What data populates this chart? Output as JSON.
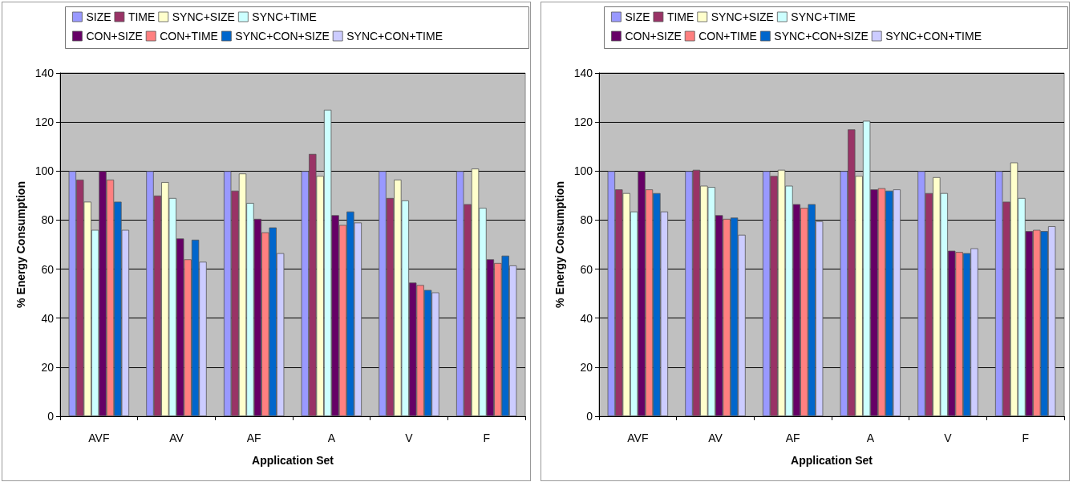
{
  "chart_data": [
    {
      "type": "bar",
      "xlabel": "Application Set",
      "ylabel": "% Energy Consumption",
      "categories": [
        "AVF",
        "AV",
        "AF",
        "A",
        "V",
        "F"
      ],
      "ylim": [
        0,
        140
      ],
      "yticks": [
        0,
        20,
        40,
        60,
        80,
        100,
        120,
        140
      ],
      "grid": "y",
      "legend": "top",
      "series": [
        {
          "name": "SIZE",
          "color": "#9999ff",
          "values": [
            100,
            100,
            100,
            100,
            100,
            100
          ]
        },
        {
          "name": "TIME",
          "color": "#993366",
          "values": [
            96.5,
            90,
            92,
            107,
            89,
            86.5
          ]
        },
        {
          "name": "SYNC+SIZE",
          "color": "#ffffcc",
          "values": [
            87.5,
            95.5,
            99,
            98,
            96.5,
            101
          ]
        },
        {
          "name": "SYNC+TIME",
          "color": "#ccffff",
          "values": [
            76,
            89,
            87,
            125,
            88,
            85
          ]
        },
        {
          "name": "CON+SIZE",
          "color": "#660066",
          "values": [
            100,
            72.5,
            80.5,
            82,
            54.5,
            64
          ]
        },
        {
          "name": "CON+TIME",
          "color": "#ff8080",
          "values": [
            96.5,
            64,
            75,
            78,
            53.5,
            62.5
          ]
        },
        {
          "name": "SYNC+CON+SIZE",
          "color": "#0066cc",
          "values": [
            87.5,
            72,
            77,
            83.5,
            51.5,
            65.5
          ]
        },
        {
          "name": "SYNC+CON+TIME",
          "color": "#ccccff",
          "values": [
            76,
            63,
            66.5,
            79,
            50.5,
            61.5
          ]
        }
      ]
    },
    {
      "type": "bar",
      "xlabel": "Application Set",
      "ylabel": "% Energy Consumption",
      "categories": [
        "AVF",
        "AV",
        "AF",
        "A",
        "V",
        "F"
      ],
      "ylim": [
        0,
        140
      ],
      "yticks": [
        0,
        20,
        40,
        60,
        80,
        100,
        120,
        140
      ],
      "grid": "y",
      "legend": "top",
      "series": [
        {
          "name": "SIZE",
          "color": "#9999ff",
          "values": [
            100,
            100,
            100,
            100,
            100,
            100
          ]
        },
        {
          "name": "TIME",
          "color": "#993366",
          "values": [
            92.5,
            100.5,
            98,
            117,
            91,
            87.5
          ]
        },
        {
          "name": "SYNC+SIZE",
          "color": "#ffffcc",
          "values": [
            91,
            94,
            100.5,
            98,
            97.5,
            103.5
          ]
        },
        {
          "name": "SYNC+TIME",
          "color": "#ccffff",
          "values": [
            83.5,
            93.5,
            94,
            120.5,
            91,
            89
          ]
        },
        {
          "name": "CON+SIZE",
          "color": "#660066",
          "values": [
            100,
            82,
            86.5,
            92.5,
            67.5,
            75.5
          ]
        },
        {
          "name": "CON+TIME",
          "color": "#ff8080",
          "values": [
            92.5,
            80.5,
            85,
            93,
            67,
            76
          ]
        },
        {
          "name": "SYNC+CON+SIZE",
          "color": "#0066cc",
          "values": [
            91,
            81,
            86.5,
            92,
            66.5,
            75.5
          ]
        },
        {
          "name": "SYNC+CON+TIME",
          "color": "#ccccff",
          "values": [
            83.5,
            74,
            79.5,
            92.5,
            68.5,
            77.5
          ]
        }
      ]
    }
  ]
}
